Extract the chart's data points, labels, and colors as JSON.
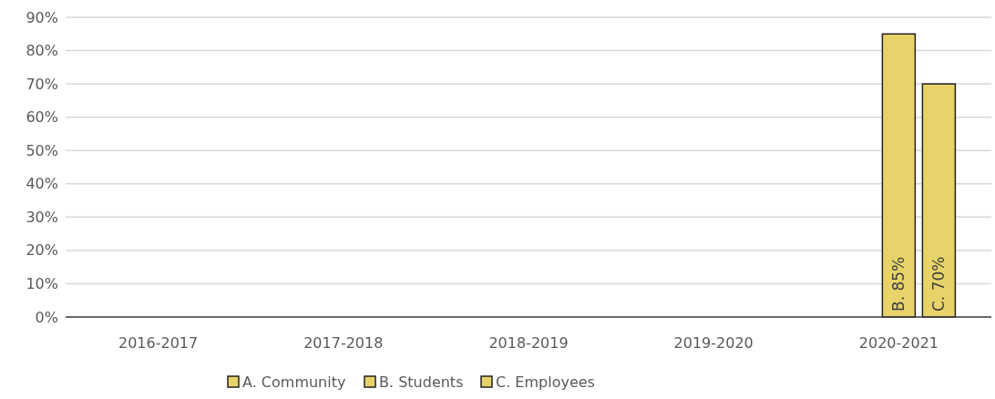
{
  "chart_data": {
    "type": "bar",
    "categories": [
      "2016-2017",
      "2017-2018",
      "2018-2019",
      "2019-2020",
      "2020-2021"
    ],
    "series": [
      {
        "name": "A. Community",
        "color": "#e8d36a",
        "values": [
          null,
          null,
          null,
          null,
          null
        ]
      },
      {
        "name": "B. Students",
        "color": "#e8d36a",
        "values": [
          null,
          null,
          null,
          null,
          85
        ],
        "value_labels": [
          null,
          null,
          null,
          null,
          "B. 85%"
        ]
      },
      {
        "name": "C. Employees",
        "color": "#e8d36a",
        "values": [
          null,
          null,
          null,
          null,
          70
        ],
        "value_labels": [
          null,
          null,
          null,
          null,
          "C. 70%"
        ]
      }
    ],
    "ylim": [
      0,
      90
    ],
    "yticks": [
      {
        "value": 0,
        "label": "0%"
      },
      {
        "value": 10,
        "label": "10%"
      },
      {
        "value": 20,
        "label": "20%"
      },
      {
        "value": 30,
        "label": "30%"
      },
      {
        "value": 40,
        "label": "40%"
      },
      {
        "value": 50,
        "label": "50%"
      },
      {
        "value": 60,
        "label": "60%"
      },
      {
        "value": 70,
        "label": "70%"
      },
      {
        "value": 80,
        "label": "80%"
      },
      {
        "value": 90,
        "label": "90%"
      }
    ],
    "grid": "y",
    "legend": "bottom"
  }
}
